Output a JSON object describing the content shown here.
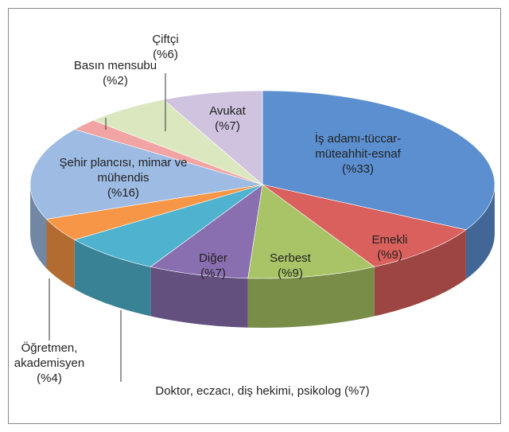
{
  "chart_data": {
    "type": "pie",
    "categories": [
      "İş adamı-tüccar-müteahhit-esnaf",
      "Emekli",
      "Serbest",
      "Diğer",
      "Doktor, eczacı, diş hekimi, psikolog",
      "Öğretmen, akademisyen",
      "Şehir plancısı, mimar ve mühendis",
      "Basın mensubu",
      "Çiftçi",
      "Avukat"
    ],
    "values": [
      33,
      9,
      9,
      7,
      7,
      4,
      16,
      2,
      6,
      7
    ],
    "value_labels": [
      "(%33)",
      "(%9)",
      "(%9)",
      "(%7)",
      "(%7)",
      "(%4)",
      "(%16)",
      "(%2)",
      "(%6)",
      "(%7)"
    ],
    "colors": [
      "#5b8fd0",
      "#d9605c",
      "#a8c466",
      "#8a6fb0",
      "#4fb3cf",
      "#f79646",
      "#9dbbe3",
      "#f2a3a3",
      "#dbe8bf",
      "#cfc3e0"
    ]
  }
}
